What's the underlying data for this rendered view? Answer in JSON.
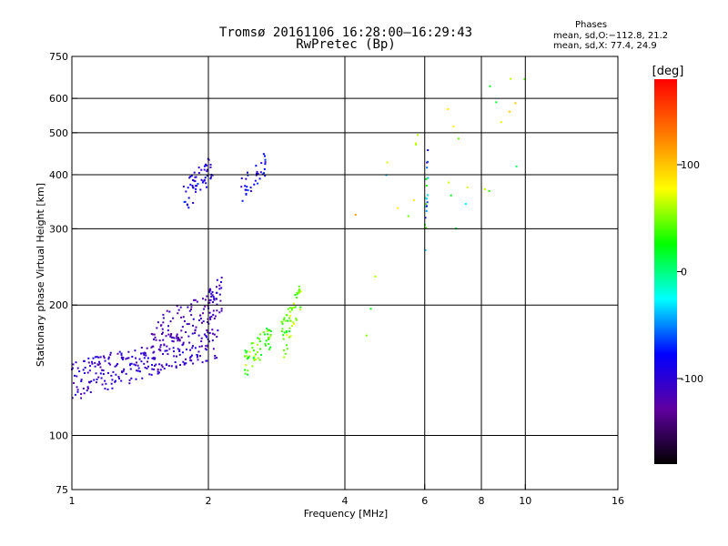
{
  "title_line1": "Tromsø 20161106 16:28:00–16:29:43",
  "title_line2": "RwPretec (Bp)",
  "phases": {
    "header": "Phases",
    "line1": "mean, sd,O:−112.8, 21.2",
    "line2": "mean, sd,X:  77.4, 24.9"
  },
  "colors": {
    "grid": "#000000",
    "background": "#ffffff",
    "colorbar_stops": [
      "#ff0000",
      "#ff7a00",
      "#ffff00",
      "#00ff00",
      "#00ffff",
      "#0000ff",
      "#6000a0",
      "#000000"
    ]
  },
  "chart_data": {
    "type": "scatter",
    "xlabel": "Frequency [MHz]",
    "ylabel": "Stationary phase Virtual Height [km]",
    "x_scale": "log",
    "y_scale": "log",
    "xlim": [
      1,
      16
    ],
    "ylim": [
      75,
      750
    ],
    "x_ticks": [
      1,
      2,
      4,
      6,
      8,
      10,
      16
    ],
    "y_ticks": [
      75,
      100,
      200,
      300,
      400,
      500,
      600,
      750
    ],
    "x_gridlines": [
      2,
      4,
      6,
      8,
      10
    ],
    "y_gridlines": [
      100,
      200,
      300,
      400,
      500,
      600
    ],
    "colorbar": {
      "label": "[deg]",
      "range": [
        -180,
        180
      ],
      "ticks": [
        100,
        0,
        -100
      ]
    },
    "clusters": [
      {
        "name": "",
        "x_range": [
          1.0,
          2.1
        ],
        "y_range": [
          120,
          170
        ],
        "n": 260,
        "phase_mean": -105,
        "phase_sd": 12
      },
      {
        "name": "",
        "x_range": [
          1.5,
          2.15
        ],
        "y_range": [
          150,
          215
        ],
        "n": 110,
        "phase_mean": -115,
        "phase_sd": 12
      },
      {
        "name": "",
        "x_range": [
          2.0,
          2.15
        ],
        "y_range": [
          180,
          240
        ],
        "n": 20,
        "phase_mean": -100,
        "phase_sd": 10
      },
      {
        "name": "",
        "x_range": [
          1.75,
          2.05
        ],
        "y_range": [
          320,
          430
        ],
        "n": 55,
        "phase_mean": -95,
        "phase_sd": 15
      },
      {
        "name": "",
        "x_range": [
          2.35,
          2.7
        ],
        "y_range": [
          340,
          440
        ],
        "n": 35,
        "phase_mean": -85,
        "phase_sd": 15
      },
      {
        "name": "",
        "x_range": [
          2.4,
          2.75
        ],
        "y_range": [
          135,
          175
        ],
        "n": 60,
        "phase_mean": 40,
        "phase_sd": 25
      },
      {
        "name": "",
        "x_range": [
          2.9,
          3.2
        ],
        "y_range": [
          145,
          215
        ],
        "n": 55,
        "phase_mean": 50,
        "phase_sd": 20
      },
      {
        "name": "",
        "x_range": [
          6.0,
          6.1
        ],
        "y_range": [
          240,
          440
        ],
        "n": 20,
        "phase_mean": -40,
        "phase_sd": 80
      },
      {
        "name": "",
        "x_range": [
          4.2,
          10.0
        ],
        "y_range": [
          110,
          640
        ],
        "n": 30,
        "phase_mean": 60,
        "phase_sd": 60
      }
    ]
  }
}
